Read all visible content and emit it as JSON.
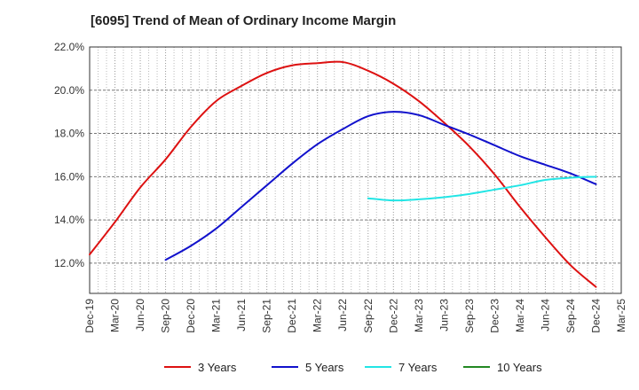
{
  "chart_data": {
    "type": "line",
    "title": "[6095]  Trend of Mean of Ordinary Income Margin",
    "xlabel": "",
    "ylabel": "",
    "ylim": [
      10.6,
      22.0
    ],
    "y_ticks": [
      12.0,
      14.0,
      16.0,
      18.0,
      20.0,
      22.0
    ],
    "y_tick_labels": [
      "12.0%",
      "14.0%",
      "16.0%",
      "18.0%",
      "20.0%",
      "22.0%"
    ],
    "x_ticks": [
      "Dec-19",
      "Mar-20",
      "Jun-20",
      "Sep-20",
      "Dec-20",
      "Mar-21",
      "Jun-21",
      "Sep-21",
      "Dec-21",
      "Mar-22",
      "Jun-22",
      "Sep-22",
      "Dec-22",
      "Mar-23",
      "Jun-23",
      "Sep-23",
      "Dec-23",
      "Mar-24",
      "Jun-24",
      "Sep-24",
      "Dec-24",
      "Mar-25"
    ],
    "grid": true,
    "legend_position": "bottom",
    "series": [
      {
        "name": "3 Years",
        "color": "#dd1111",
        "x": [
          "Dec-19",
          "Mar-20",
          "Jun-20",
          "Sep-20",
          "Dec-20",
          "Mar-21",
          "Jun-21",
          "Sep-21",
          "Dec-21",
          "Mar-22",
          "Jun-22",
          "Sep-22",
          "Dec-22",
          "Mar-23",
          "Jun-23",
          "Sep-23",
          "Dec-23",
          "Mar-24",
          "Jun-24",
          "Sep-24",
          "Dec-24"
        ],
        "values": [
          12.4,
          13.9,
          15.5,
          16.8,
          18.3,
          19.5,
          20.2,
          20.8,
          21.15,
          21.25,
          21.3,
          20.9,
          20.3,
          19.5,
          18.5,
          17.4,
          16.1,
          14.6,
          13.2,
          11.9,
          10.9
        ]
      },
      {
        "name": "5 Years",
        "color": "#1111cc",
        "x": [
          "Sep-20",
          "Dec-20",
          "Mar-21",
          "Jun-21",
          "Sep-21",
          "Dec-21",
          "Mar-22",
          "Jun-22",
          "Sep-22",
          "Dec-22",
          "Mar-23",
          "Jun-23",
          "Sep-23",
          "Dec-23",
          "Mar-24",
          "Jun-24",
          "Sep-24",
          "Dec-24"
        ],
        "values": [
          12.15,
          12.8,
          13.6,
          14.6,
          15.6,
          16.6,
          17.5,
          18.2,
          18.8,
          19.0,
          18.85,
          18.4,
          17.95,
          17.45,
          16.95,
          16.55,
          16.15,
          15.65
        ]
      },
      {
        "name": "7 Years",
        "color": "#22e5e5",
        "x": [
          "Sep-22",
          "Dec-22",
          "Mar-23",
          "Jun-23",
          "Sep-23",
          "Dec-23",
          "Mar-24",
          "Jun-24",
          "Sep-24",
          "Dec-24"
        ],
        "values": [
          15.0,
          14.9,
          14.95,
          15.05,
          15.2,
          15.4,
          15.6,
          15.85,
          15.95,
          16.0
        ]
      },
      {
        "name": "10 Years",
        "color": "#228822",
        "x": [],
        "values": []
      }
    ]
  }
}
